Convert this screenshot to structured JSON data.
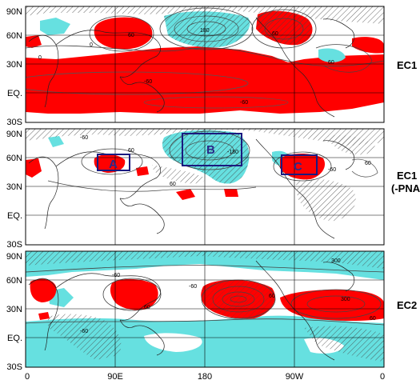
{
  "panels": [
    {
      "label": "EC1",
      "y_ticks": [
        "90N",
        "60N",
        "30N",
        "EQ.",
        "30S"
      ],
      "contour_labels": [
        "60",
        "180",
        "60",
        "60",
        "-60",
        "-60",
        "0",
        "0",
        "60",
        "180",
        "-60",
        "60",
        "0"
      ]
    },
    {
      "label": "EC1\n(-PNA)",
      "label_lines": [
        "EC1",
        "(-PNA)"
      ],
      "y_ticks": [
        "90N",
        "60N",
        "30N",
        "EQ.",
        "30S"
      ],
      "contour_labels": [
        "-60",
        "60",
        "-180",
        "60",
        "-60",
        "60",
        "-60",
        "0"
      ],
      "boxes": [
        {
          "label": "A"
        },
        {
          "label": "B"
        },
        {
          "label": "C"
        }
      ]
    },
    {
      "label": "EC2",
      "y_ticks": [
        "90N",
        "60N",
        "30N",
        "EQ.",
        "30S"
      ],
      "contour_labels": [
        "300",
        "-60",
        "60",
        "-60",
        "60",
        "300",
        "-60",
        "60",
        "0",
        "0",
        "60",
        "180",
        "-60"
      ]
    }
  ],
  "x_ticks": [
    "0",
    "90E",
    "180",
    "90W",
    "0"
  ],
  "colors": {
    "positive_shading": "#ff0000",
    "negative_shading": "#66e0e0",
    "box_outline": "#1a1a80"
  }
}
